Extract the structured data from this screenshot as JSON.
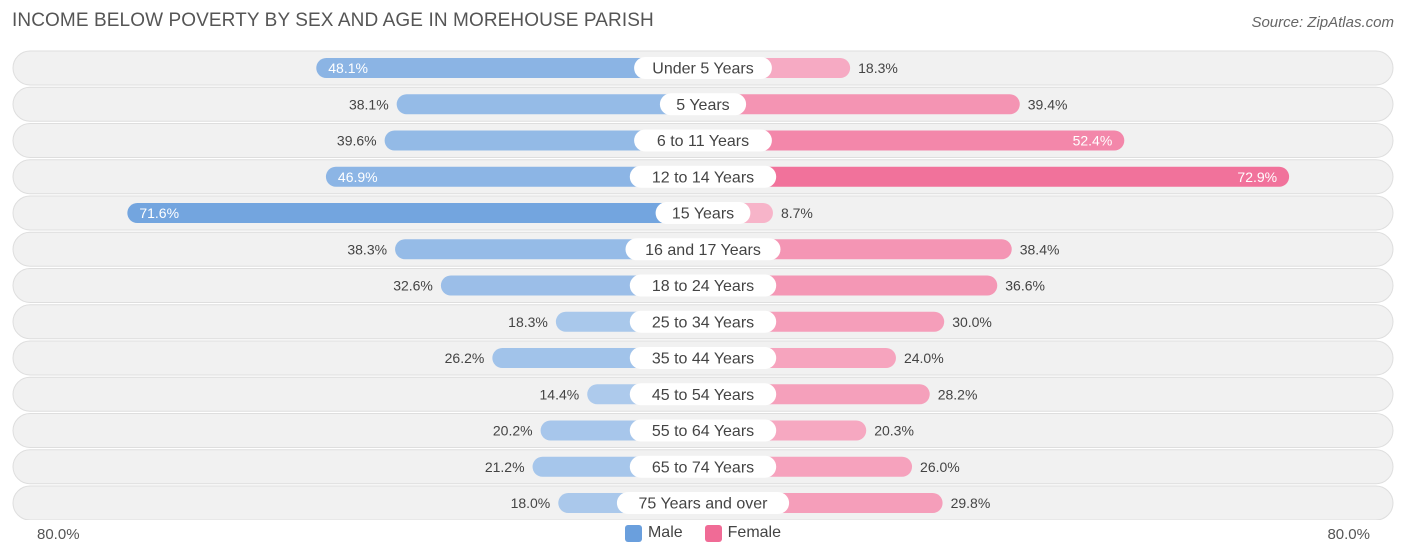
{
  "title": "INCOME BELOW POVERTY BY SEX AND AGE IN MOREHOUSE PARISH",
  "source": "Source: ZipAtlas.com",
  "colors": {
    "male": "#6a9fdd",
    "female": "#f06b96",
    "row_bg": "#f1f1f1",
    "row_border": "#dedede"
  },
  "chart_data": {
    "type": "bar",
    "orientation": "horizontal-diverging",
    "categories": [
      "Under 5 Years",
      "5 Years",
      "6 to 11 Years",
      "12 to 14 Years",
      "15 Years",
      "16 and 17 Years",
      "18 to 24 Years",
      "25 to 34 Years",
      "35 to 44 Years",
      "45 to 54 Years",
      "55 to 64 Years",
      "65 to 74 Years",
      "75 Years and over"
    ],
    "series": [
      {
        "name": "Male",
        "values": [
          48.1,
          38.1,
          39.6,
          46.9,
          71.6,
          38.3,
          32.6,
          18.3,
          26.2,
          14.4,
          20.2,
          21.2,
          18.0
        ]
      },
      {
        "name": "Female",
        "values": [
          18.3,
          39.4,
          52.4,
          72.9,
          8.7,
          38.4,
          36.6,
          30.0,
          24.0,
          28.2,
          20.3,
          26.0,
          29.8
        ]
      }
    ],
    "value_labels": {
      "male": [
        "48.1%",
        "38.1%",
        "39.6%",
        "46.9%",
        "71.6%",
        "38.3%",
        "32.6%",
        "18.3%",
        "26.2%",
        "14.4%",
        "20.2%",
        "21.2%",
        "18.0%"
      ],
      "female": [
        "18.3%",
        "39.4%",
        "52.4%",
        "72.9%",
        "8.7%",
        "38.4%",
        "36.6%",
        "30.0%",
        "24.0%",
        "28.2%",
        "20.3%",
        "26.0%",
        "29.8%"
      ]
    },
    "xlim": [
      -80,
      80
    ],
    "axis_labels": {
      "left": "80.0%",
      "right": "80.0%"
    },
    "legend": {
      "position": "bottom-center",
      "items": [
        "Male",
        "Female"
      ]
    }
  }
}
